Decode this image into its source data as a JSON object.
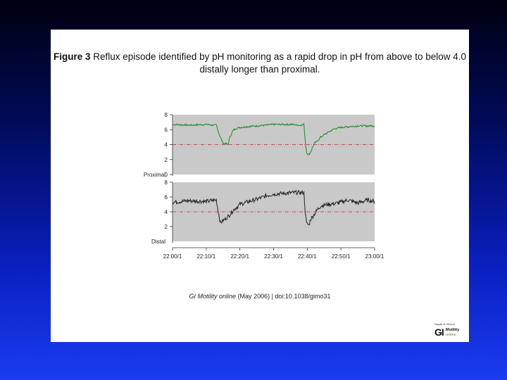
{
  "caption": {
    "label": "Figure 3",
    "text": "Reflux episode identified by pH monitoring as a rapid drop in pH from above to below 4.0 distally longer than proximal."
  },
  "citation": {
    "journal": "GI Motility online",
    "rest": "(May 2006) | doi:10.1038/gimo31"
  },
  "logo": {
    "small_text": "Nayak & Gibson",
    "gi": "GI",
    "motility": "Motility",
    "online": "online"
  },
  "colors": {
    "proximal_trace": "#1f8a2a",
    "distal_trace": "#222222",
    "threshold_line": "#cc2222",
    "plot_background": "#c9c9c9"
  },
  "chart_data": [
    {
      "type": "line",
      "panel_label": "Proximal",
      "ylim": [
        0,
        8
      ],
      "yticks": [
        "0",
        "2",
        "4",
        "6",
        "8"
      ],
      "threshold": 4,
      "xlim": [
        0,
        60
      ],
      "series": [
        {
          "x": [
            0,
            5,
            10,
            12,
            13,
            14,
            15,
            16,
            16.5,
            17,
            18,
            19,
            20,
            22,
            25,
            30,
            35,
            38,
            39,
            39.4,
            39.8,
            40.3,
            41,
            42,
            43,
            44,
            46,
            48,
            50,
            55,
            60
          ],
          "y": [
            6.7,
            6.6,
            6.7,
            6.6,
            6.6,
            5.2,
            4.2,
            4.1,
            4.0,
            5.0,
            5.9,
            6.2,
            6.3,
            6.4,
            6.5,
            6.7,
            6.7,
            6.6,
            6.7,
            4.5,
            3.0,
            2.6,
            3.0,
            4.1,
            4.5,
            5.0,
            5.6,
            6.1,
            6.3,
            6.5,
            6.5
          ]
        }
      ]
    },
    {
      "type": "line",
      "panel_label": "Distal",
      "ylim": [
        0,
        8
      ],
      "yticks": [
        "2",
        "4",
        "6",
        "8"
      ],
      "threshold": 4,
      "xlim": [
        0,
        60
      ],
      "xticks": [
        "22:00/1",
        "22:10/1",
        "22:20/1",
        "22:30/1",
        "22:40/1",
        "22:50/1",
        "23:00/1"
      ],
      "series": [
        {
          "x": [
            0,
            5,
            10,
            13,
            13.6,
            14.2,
            15,
            16,
            17,
            18,
            19,
            20,
            22,
            25,
            28,
            30,
            33,
            36,
            39,
            39.4,
            39.8,
            40.5,
            41,
            42,
            43,
            44,
            46,
            48,
            50,
            52,
            55,
            58,
            60
          ],
          "y": [
            5.3,
            5.5,
            5.4,
            5.6,
            4.0,
            2.5,
            2.8,
            3.2,
            3.6,
            4.2,
            4.6,
            5.0,
            5.3,
            5.7,
            6.2,
            6.4,
            6.5,
            6.6,
            6.6,
            4.0,
            2.4,
            2.2,
            3.0,
            3.6,
            4.3,
            4.8,
            5.0,
            5.1,
            5.3,
            5.6,
            5.2,
            5.6,
            5.4
          ]
        }
      ]
    }
  ]
}
